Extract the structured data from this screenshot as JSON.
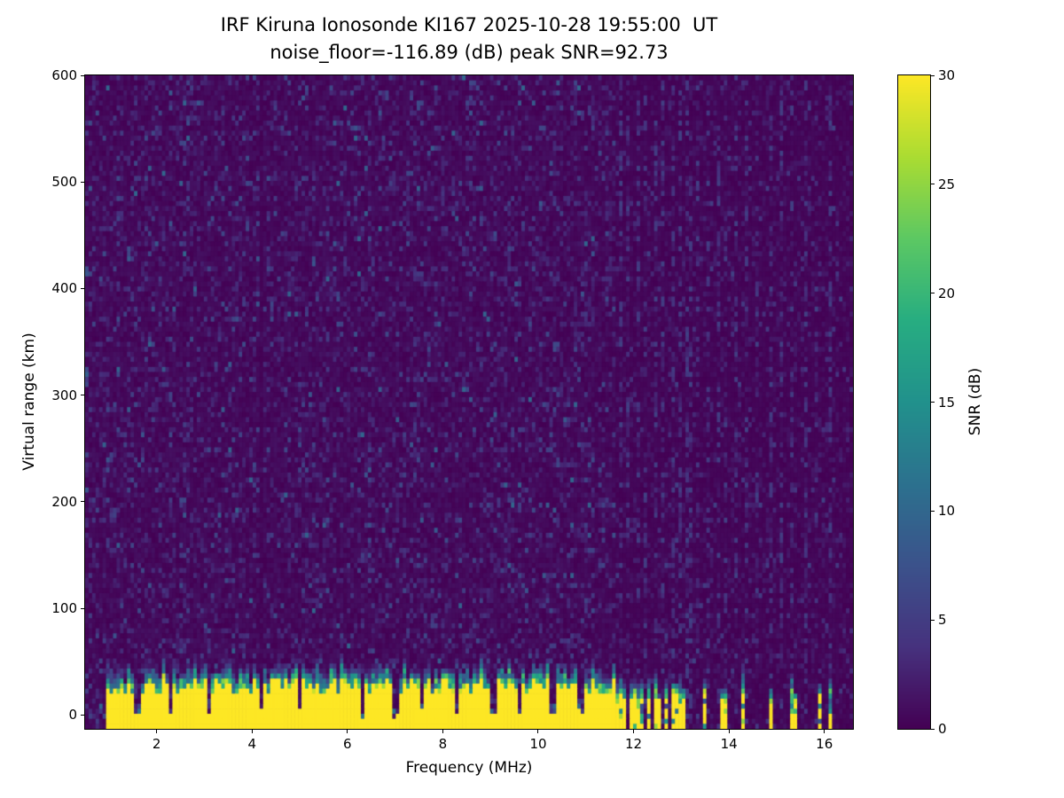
{
  "chart_data": {
    "type": "heatmap",
    "title_line1": "IRF Kiruna Ionosonde KI167 2025-10-28 19:55:00  UT",
    "title_line2": "noise_floor=-116.89 (dB) peak SNR=92.73",
    "station": "IRF Kiruna Ionosonde KI167",
    "timestamp_ut": "2025-10-28 19:55:00",
    "noise_floor_db": -116.89,
    "peak_snr_db": 92.73,
    "xlabel": "Frequency (MHz)",
    "ylabel": "Virtual range (km)",
    "colorbar_label": "SNR (dB)",
    "xlim": [
      0.5,
      16.6
    ],
    "ylim": [
      -13,
      600
    ],
    "clim": [
      0,
      30
    ],
    "xticks": [
      2,
      4,
      6,
      8,
      10,
      12,
      14,
      16
    ],
    "yticks": [
      0,
      100,
      200,
      300,
      400,
      500,
      600
    ],
    "colorbar_ticks": [
      0,
      5,
      10,
      15,
      20,
      25,
      30
    ],
    "colormap": "viridis",
    "colormap_stops": [
      [
        0.0,
        "#440154"
      ],
      [
        0.125,
        "#46327e"
      ],
      [
        0.25,
        "#3b528b"
      ],
      [
        0.375,
        "#2c718e"
      ],
      [
        0.5,
        "#21918c"
      ],
      [
        0.625,
        "#27ad81"
      ],
      [
        0.75,
        "#5cc863"
      ],
      [
        0.875,
        "#aadc32"
      ],
      [
        1.0,
        "#fde725"
      ]
    ],
    "grid": false,
    "seed": 167,
    "features": {
      "background_snr_db": 0,
      "ground_echo_band": {
        "f_start": 0.95,
        "f_end": 11.62,
        "top_km_mean": 26,
        "top_km_jitter": 8,
        "transition_km": 18
      },
      "band_gaps_mhz": [
        1.6,
        2.3,
        3.1,
        4.2,
        5.0,
        6.3,
        7.0,
        7.55,
        8.3,
        9.05,
        9.6,
        10.3,
        10.9
      ],
      "echo_stripes_mhz": [
        11.7,
        11.82,
        11.94,
        12.06,
        12.18,
        12.3,
        12.44,
        12.56,
        12.7,
        12.82,
        12.94,
        13.04,
        13.5,
        13.9,
        14.3,
        14.9,
        15.35,
        15.9,
        16.1
      ],
      "artifact_columns_mhz": [
        11.72,
        11.9,
        12.08,
        12.26,
        12.44,
        12.62,
        12.8,
        12.98,
        13.16,
        13.35,
        13.55,
        13.75,
        13.95,
        14.15,
        14.35,
        14.6,
        14.85,
        15.1,
        15.35,
        15.6,
        15.85,
        16.1
      ],
      "dark_columns_mhz": [
        4.2
      ]
    }
  }
}
